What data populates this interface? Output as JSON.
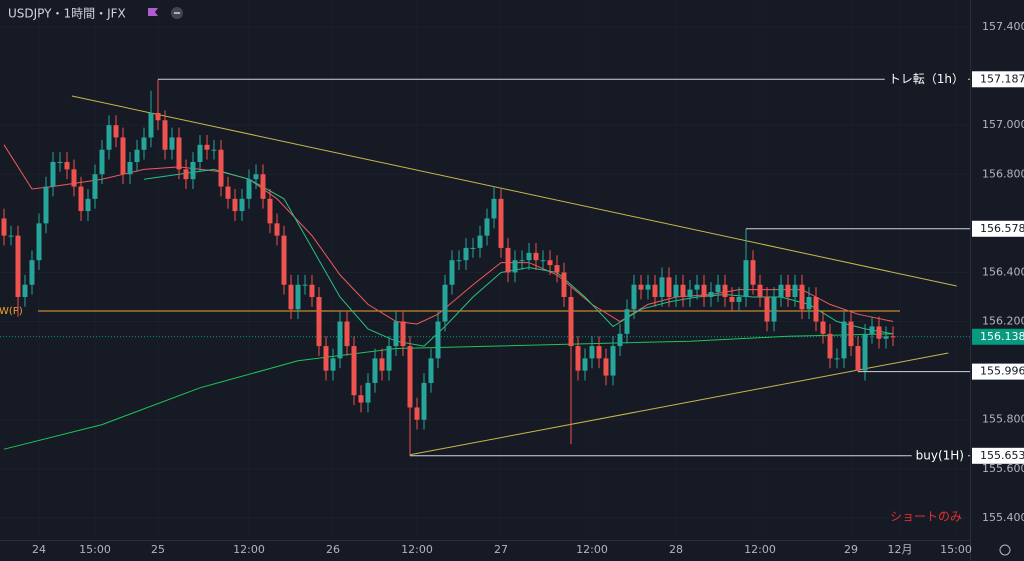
{
  "chart_data": {
    "type": "candlestick",
    "title": "USDJPY・1時間・JFX",
    "xlim": [
      -0.57,
      138
    ],
    "xticks": [
      {
        "value": 5,
        "label": "24"
      },
      {
        "value": 13,
        "label": "15:00"
      },
      {
        "value": 22,
        "label": "25"
      },
      {
        "value": 35,
        "label": "12:00"
      },
      {
        "value": 47,
        "label": "26"
      },
      {
        "value": 59,
        "label": "12:00"
      },
      {
        "value": 71,
        "label": "27"
      },
      {
        "value": 84,
        "label": "12:00"
      },
      {
        "value": 96,
        "label": "28"
      },
      {
        "value": 108,
        "label": "12:00"
      },
      {
        "value": 121,
        "label": "29"
      },
      {
        "value": 128,
        "label": "12月"
      },
      {
        "value": 136,
        "label": "15:00"
      }
    ],
    "ylim": [
      155.31,
      157.51
    ],
    "yticks": [
      {
        "value": 157.4,
        "label": "157.400"
      },
      {
        "value": 157.0,
        "label": "157.000"
      },
      {
        "value": 156.8,
        "label": "156.800"
      },
      {
        "value": 156.4,
        "label": "156.400"
      },
      {
        "value": 156.2,
        "label": "156.200"
      },
      {
        "value": 155.8,
        "label": "155.800"
      },
      {
        "value": 155.6,
        "label": "155.600"
      },
      {
        "value": 155.4,
        "label": "155.400"
      }
    ],
    "grid": true,
    "up_color": "#26a69a",
    "down_color": "#ef5350",
    "candles": {
      "open": [
        156.62,
        156.55,
        156.55,
        156.3,
        156.35,
        156.45,
        156.6,
        156.75,
        156.85,
        156.85,
        156.82,
        156.75,
        156.65,
        156.7,
        156.8,
        156.9,
        157.0,
        156.95,
        156.8,
        156.85,
        156.9,
        156.95,
        157.05,
        157.02,
        156.9,
        156.95,
        156.82,
        156.78,
        156.85,
        156.92,
        156.9,
        156.9,
        156.75,
        156.7,
        156.65,
        156.7,
        156.78,
        156.8,
        156.7,
        156.6,
        156.55,
        156.35,
        156.25,
        156.35,
        156.35,
        156.3,
        156.1,
        156.0,
        156.05,
        156.2,
        156.1,
        155.9,
        155.87,
        155.95,
        156.05,
        156.0,
        156.1,
        156.2,
        156.1,
        155.85,
        155.8,
        155.95,
        156.05,
        156.2,
        156.35,
        156.45,
        156.45,
        156.5,
        156.5,
        156.55,
        156.62,
        156.7,
        156.5,
        156.4,
        156.45,
        156.45,
        156.48,
        156.45,
        156.45,
        156.43,
        156.4,
        156.3,
        156.1,
        156.0,
        156.05,
        156.1,
        156.05,
        155.98,
        156.1,
        156.15,
        156.25,
        156.35,
        156.33,
        156.35,
        156.3,
        156.38,
        156.3,
        156.35,
        156.3,
        156.33,
        156.35,
        156.3,
        156.32,
        156.35,
        156.3,
        156.28,
        156.3,
        156.45,
        156.35,
        156.3,
        156.2,
        156.3,
        156.35,
        156.3,
        156.35,
        156.25,
        156.3,
        156.2,
        156.15,
        156.05,
        156.05,
        156.2,
        156.1,
        156.0,
        156.15,
        156.18,
        156.13,
        156.14
      ],
      "high": [
        156.66,
        156.59,
        156.59,
        156.39,
        156.49,
        156.64,
        156.79,
        156.89,
        156.89,
        156.89,
        156.86,
        156.79,
        156.74,
        156.84,
        156.94,
        157.04,
        157.04,
        156.99,
        156.89,
        156.94,
        156.99,
        157.14,
        157.187,
        157.06,
        156.99,
        156.99,
        156.86,
        156.89,
        156.96,
        156.96,
        156.94,
        156.94,
        156.79,
        156.74,
        156.74,
        156.82,
        156.84,
        156.84,
        156.74,
        156.64,
        156.59,
        156.39,
        156.39,
        156.39,
        156.39,
        156.34,
        156.14,
        156.09,
        156.24,
        156.24,
        156.14,
        155.94,
        155.99,
        156.09,
        156.09,
        156.14,
        156.24,
        156.24,
        156.14,
        155.89,
        155.99,
        156.09,
        156.24,
        156.39,
        156.49,
        156.49,
        156.54,
        156.54,
        156.59,
        156.66,
        156.75,
        156.74,
        156.54,
        156.49,
        156.49,
        156.52,
        156.52,
        156.49,
        156.49,
        156.47,
        156.44,
        156.34,
        156.14,
        156.09,
        156.14,
        156.14,
        156.09,
        156.14,
        156.19,
        156.29,
        156.39,
        156.39,
        156.39,
        156.39,
        156.42,
        156.42,
        156.39,
        156.39,
        156.37,
        156.39,
        156.39,
        156.36,
        156.39,
        156.39,
        156.34,
        156.34,
        156.578,
        156.49,
        156.39,
        156.34,
        156.34,
        156.39,
        156.39,
        156.39,
        156.39,
        156.34,
        156.34,
        156.24,
        156.19,
        156.09,
        156.24,
        156.24,
        156.14,
        156.19,
        156.22,
        156.22,
        156.18,
        156.18
      ],
      "low": [
        156.51,
        156.51,
        156.22,
        156.26,
        156.31,
        156.41,
        156.56,
        156.71,
        156.81,
        156.78,
        156.71,
        156.61,
        156.61,
        156.66,
        156.76,
        156.86,
        156.91,
        156.76,
        156.76,
        156.81,
        156.86,
        156.91,
        156.98,
        156.86,
        156.86,
        156.78,
        156.74,
        156.74,
        156.81,
        156.86,
        156.86,
        156.71,
        156.66,
        156.61,
        156.61,
        156.66,
        156.74,
        156.66,
        156.56,
        156.51,
        156.31,
        156.21,
        156.21,
        156.31,
        156.26,
        156.06,
        155.96,
        155.96,
        156.01,
        156.06,
        155.86,
        155.83,
        155.83,
        155.91,
        155.96,
        155.96,
        156.06,
        156.06,
        155.653,
        155.76,
        155.76,
        155.91,
        156.01,
        156.16,
        156.31,
        156.41,
        156.41,
        156.46,
        156.46,
        156.51,
        156.58,
        156.46,
        156.36,
        156.36,
        156.41,
        156.41,
        156.41,
        156.41,
        156.39,
        156.36,
        156.26,
        155.7,
        155.96,
        155.96,
        156.01,
        156.01,
        155.94,
        155.94,
        156.06,
        156.11,
        156.21,
        156.29,
        156.29,
        156.26,
        156.26,
        156.26,
        156.26,
        156.26,
        156.26,
        156.29,
        156.26,
        156.26,
        156.28,
        156.26,
        156.24,
        156.24,
        156.26,
        156.31,
        156.26,
        156.16,
        156.16,
        156.26,
        156.26,
        156.26,
        156.21,
        156.21,
        156.16,
        156.11,
        156.01,
        156.01,
        156.01,
        156.06,
        155.996,
        155.96,
        156.11,
        156.09,
        156.09,
        156.1
      ],
      "close": [
        156.55,
        156.55,
        156.3,
        156.35,
        156.45,
        156.6,
        156.75,
        156.85,
        156.85,
        156.82,
        156.75,
        156.65,
        156.7,
        156.8,
        156.9,
        157.0,
        156.95,
        156.8,
        156.85,
        156.9,
        156.95,
        157.05,
        157.02,
        156.9,
        156.95,
        156.82,
        156.78,
        156.85,
        156.92,
        156.9,
        156.9,
        156.75,
        156.7,
        156.65,
        156.7,
        156.78,
        156.8,
        156.7,
        156.6,
        156.55,
        156.35,
        156.25,
        156.35,
        156.35,
        156.3,
        156.1,
        156.0,
        156.05,
        156.2,
        156.1,
        155.9,
        155.87,
        155.95,
        156.05,
        156.0,
        156.1,
        156.2,
        156.1,
        155.85,
        155.8,
        155.95,
        156.05,
        156.2,
        156.35,
        156.45,
        156.45,
        156.5,
        156.5,
        156.55,
        156.62,
        156.7,
        156.5,
        156.4,
        156.45,
        156.45,
        156.48,
        156.45,
        156.45,
        156.43,
        156.4,
        156.3,
        156.1,
        156.0,
        156.05,
        156.1,
        156.05,
        155.98,
        156.1,
        156.15,
        156.25,
        156.35,
        156.33,
        156.35,
        156.3,
        156.38,
        156.3,
        156.35,
        156.3,
        156.33,
        156.35,
        156.3,
        156.32,
        156.35,
        156.3,
        156.28,
        156.3,
        156.45,
        156.35,
        156.3,
        156.2,
        156.3,
        156.35,
        156.3,
        156.35,
        156.25,
        156.3,
        156.2,
        156.15,
        156.05,
        156.05,
        156.2,
        156.1,
        156.0,
        156.15,
        156.18,
        156.13,
        156.14,
        156.138
      ]
    },
    "ma_lines": [
      {
        "color": "#f05a5a",
        "x": [
          0,
          4,
          7,
          14,
          20,
          25,
          31,
          35,
          39,
          44,
          48,
          52,
          56,
          59,
          62,
          67,
          71,
          75,
          79,
          84,
          88,
          92,
          96,
          101,
          105,
          110,
          114,
          118,
          122,
          127
        ],
        "values": [
          156.92,
          156.74,
          156.75,
          156.78,
          156.82,
          156.83,
          156.81,
          156.78,
          156.7,
          156.55,
          156.39,
          156.27,
          156.2,
          156.19,
          156.23,
          156.35,
          156.44,
          156.44,
          156.39,
          156.27,
          156.2,
          156.27,
          156.3,
          156.31,
          156.33,
          156.33,
          156.33,
          156.27,
          156.23,
          156.2
        ]
      },
      {
        "color": "#26c281",
        "x": [
          20,
          25,
          30,
          35,
          40,
          45,
          48,
          52,
          56,
          60,
          63,
          67,
          71,
          75,
          79,
          83,
          87,
          91,
          95,
          99,
          103,
          107,
          111,
          115,
          119,
          123,
          127
        ],
        "values": [
          156.78,
          156.8,
          156.82,
          156.78,
          156.7,
          156.45,
          156.3,
          156.17,
          156.12,
          156.1,
          156.18,
          156.3,
          156.4,
          156.42,
          156.4,
          156.3,
          156.18,
          156.25,
          156.28,
          156.3,
          156.31,
          156.3,
          156.3,
          156.27,
          156.2,
          156.17,
          156.15
        ]
      },
      {
        "color": "#1fc45a",
        "x": [
          0,
          14,
          28,
          42,
          56,
          70,
          84,
          98,
          112,
          127
        ],
        "values": [
          155.68,
          155.78,
          155.93,
          156.04,
          156.09,
          156.1,
          156.11,
          156.12,
          156.14,
          156.15
        ]
      }
    ],
    "trendlines": [
      {
        "color": "#c8b84a",
        "x": [
          9.7,
          136.1
        ],
        "values": [
          157.119,
          156.345
        ]
      },
      {
        "color": "#c8b84a",
        "x": [
          58,
          134.9
        ],
        "values": [
          155.657,
          156.072
        ]
      }
    ],
    "levels": [
      {
        "value": 157.187,
        "x_start": 22,
        "text": "トレ転（1h）"
      },
      {
        "value": 156.578,
        "x_start": 106
      },
      {
        "value": 155.996,
        "x_start": 122
      },
      {
        "value": 155.653,
        "x_start": 58,
        "text": "buy(1H)"
      }
    ],
    "pivot": {
      "label": "W(P)",
      "value": 156.243,
      "color": "#f0a030"
    },
    "last_price": {
      "value": 156.138,
      "color": "#089981"
    },
    "annotation": {
      "text": "ショートのみ",
      "color": "#e03030"
    }
  }
}
